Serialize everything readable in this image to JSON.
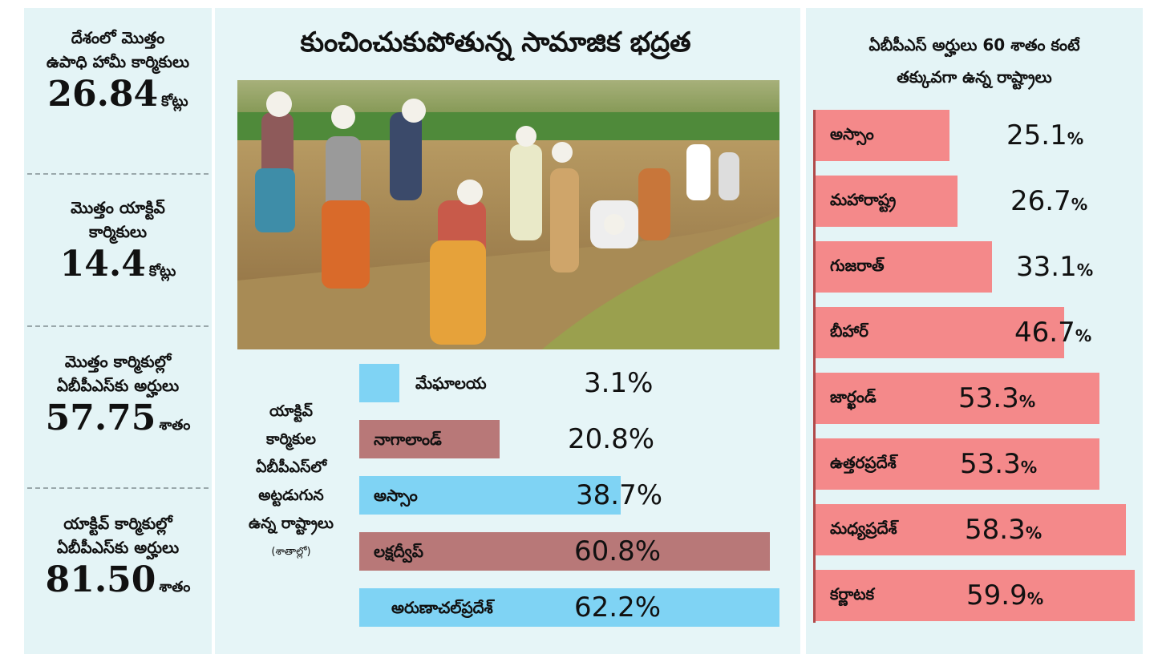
{
  "left_stats": [
    {
      "label_lines": [
        "దేశంలో మొత్తం",
        "ఉపాధి హామీ కార్మికులు"
      ],
      "value": "26.84",
      "unit": "కోట్లు"
    },
    {
      "label_lines": [
        "మొత్తం యాక్టివ్",
        "కార్మికులు"
      ],
      "value": "14.4",
      "unit": "కోట్లు"
    },
    {
      "label_lines": [
        "మొత్తం కార్మికుల్లో",
        "ఏబీపీఎస్‌కు అర్హులు"
      ],
      "value": "57.75",
      "unit": "శాతం"
    },
    {
      "label_lines": [
        "యాక్టివ్ కార్మికుల్లో",
        "ఏబీపీఎస్‌కు అర్హులు"
      ],
      "value": "81.50",
      "unit": "శాతం"
    }
  ],
  "title": "కుంచించుకుపోతున్న సామాజిక భద్రత",
  "mid_chart_label": {
    "lines": [
      "యాక్టివ్",
      "కార్మికుల",
      "ఏబీపీఎస్‌లో",
      "అట్టడుగున",
      "ఉన్న రాష్ట్రాలు"
    ],
    "note": "(శాతాల్లో)"
  },
  "chart_data": [
    {
      "type": "bar",
      "title": "",
      "categories": [
        "మేఘాలయ",
        "నాగాలాండ్",
        "అస్సాం",
        "లక్షద్వీప్",
        "అరుణాచల్‌ప్రదేశ్"
      ],
      "values": [
        3.1,
        20.8,
        38.7,
        60.8,
        62.2
      ],
      "value_labels": [
        "3.1%",
        "20.8%",
        "38.7%",
        "60.8%",
        "62.2%"
      ],
      "colors": [
        "#7fd3f4",
        "#b87878",
        "#7fd3f4",
        "#b87878",
        "#7fd3f4"
      ],
      "orientation": "horizontal"
    },
    {
      "type": "bar",
      "title": "ఏబీపీఎస్ అర్హులు 60 శాతం కంటే తక్కువగా ఉన్న రాష్ట్రాలు",
      "title_lines": [
        "ఏబీపీఎస్ అర్హులు 60 శాతం కంటే",
        "తక్కువగా ఉన్న రాష్ట్రాలు"
      ],
      "categories": [
        "అస్సాం",
        "మహారాష్ట్ర",
        "గుజరాత్",
        "బీహార్",
        "జార్ఖండ్",
        "ఉత్తరప్రదేశ్",
        "మధ్యప్రదేశ్",
        "కర్ణాటక"
      ],
      "values": [
        25.1,
        26.7,
        33.1,
        46.7,
        53.3,
        53.3,
        58.3,
        59.9
      ],
      "value_labels": [
        "25.1%",
        "26.7%",
        "33.1%",
        "46.7%",
        "53.3%",
        "53.3%",
        "58.3%",
        "59.9%"
      ],
      "color": "#f4898a",
      "orientation": "horizontal"
    }
  ]
}
